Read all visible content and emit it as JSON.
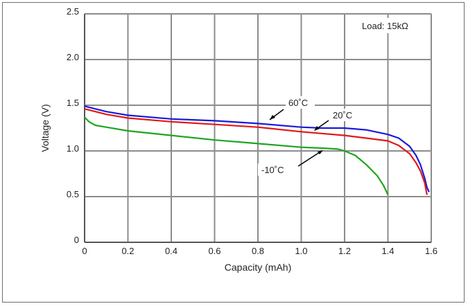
{
  "chart_data": {
    "type": "line",
    "title": "",
    "xlabel": "Capacity (mAh)",
    "ylabel": "Voltage (V)",
    "xlim": [
      0,
      1.6
    ],
    "ylim": [
      0,
      2.5
    ],
    "x_ticks": [
      0,
      0.2,
      0.4,
      0.6,
      0.8,
      1.0,
      1.2,
      1.4,
      1.6
    ],
    "x_tick_labels": [
      "0",
      "0.2",
      "0.4",
      "0.6",
      "0.8",
      "1.0",
      "1.2",
      "1.4",
      "1.6"
    ],
    "y_ticks": [
      0,
      0.5,
      1.0,
      1.5,
      2.0,
      2.5
    ],
    "y_tick_labels": [
      "0",
      "0.5",
      "1.0",
      "1.5",
      "2.0",
      "2.5"
    ],
    "grid": true,
    "load_label": "Load: 15kΩ",
    "series": [
      {
        "name": "60˚C",
        "color": "#1a1adc",
        "points": [
          [
            0,
            1.49
          ],
          [
            0.05,
            1.46
          ],
          [
            0.1,
            1.43
          ],
          [
            0.2,
            1.39
          ],
          [
            0.4,
            1.35
          ],
          [
            0.6,
            1.33
          ],
          [
            0.8,
            1.3
          ],
          [
            1.0,
            1.26
          ],
          [
            1.1,
            1.25
          ],
          [
            1.2,
            1.25
          ],
          [
            1.3,
            1.23
          ],
          [
            1.4,
            1.18
          ],
          [
            1.45,
            1.14
          ],
          [
            1.5,
            1.05
          ],
          [
            1.53,
            0.95
          ],
          [
            1.55,
            0.85
          ],
          [
            1.57,
            0.7
          ],
          [
            1.58,
            0.6
          ],
          [
            1.59,
            0.55
          ]
        ]
      },
      {
        "name": "20˚C",
        "color": "#e01818",
        "points": [
          [
            0,
            1.46
          ],
          [
            0.05,
            1.43
          ],
          [
            0.1,
            1.4
          ],
          [
            0.2,
            1.36
          ],
          [
            0.4,
            1.32
          ],
          [
            0.6,
            1.29
          ],
          [
            0.8,
            1.26
          ],
          [
            1.0,
            1.21
          ],
          [
            1.2,
            1.17
          ],
          [
            1.3,
            1.14
          ],
          [
            1.4,
            1.11
          ],
          [
            1.45,
            1.06
          ],
          [
            1.5,
            0.97
          ],
          [
            1.53,
            0.87
          ],
          [
            1.55,
            0.78
          ],
          [
            1.57,
            0.65
          ],
          [
            1.58,
            0.52
          ]
        ]
      },
      {
        "name": "-10˚C",
        "color": "#1ea51e",
        "points": [
          [
            0,
            1.37
          ],
          [
            0.02,
            1.32
          ],
          [
            0.05,
            1.28
          ],
          [
            0.1,
            1.26
          ],
          [
            0.2,
            1.22
          ],
          [
            0.4,
            1.17
          ],
          [
            0.6,
            1.12
          ],
          [
            0.8,
            1.08
          ],
          [
            1.0,
            1.04
          ],
          [
            1.1,
            1.03
          ],
          [
            1.17,
            1.02
          ],
          [
            1.2,
            1.0
          ],
          [
            1.25,
            0.95
          ],
          [
            1.3,
            0.85
          ],
          [
            1.35,
            0.73
          ],
          [
            1.38,
            0.62
          ],
          [
            1.4,
            0.52
          ]
        ]
      }
    ],
    "annotations": [
      {
        "text": "60˚C",
        "series": 0
      },
      {
        "text": "20˚C",
        "series": 1
      },
      {
        "text": "-10˚C",
        "series": 2
      }
    ]
  }
}
